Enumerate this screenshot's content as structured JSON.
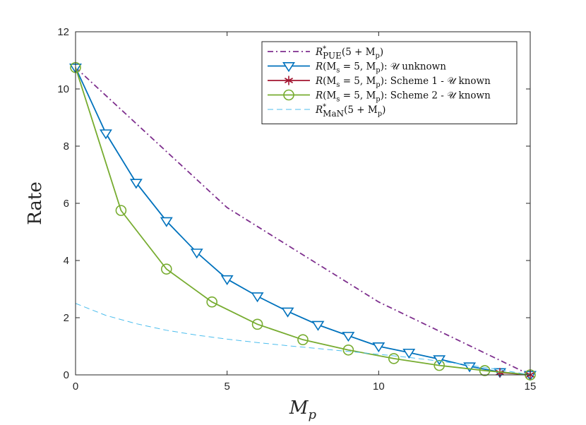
{
  "chart_data": {
    "type": "line",
    "title": "",
    "xlabel": "M_p",
    "ylabel": "Rate",
    "xlim": [
      0,
      15
    ],
    "ylim": [
      0,
      12
    ],
    "xticks": [
      "0",
      "5",
      "10",
      "15"
    ],
    "yticks": [
      "0",
      "2",
      "4",
      "6",
      "8",
      "10",
      "12"
    ],
    "grid": false,
    "legend_position": "top-right",
    "series": [
      {
        "name": "R*PUE(5 + Mp)",
        "legend_label": "R*_PUE(5 + M_p)",
        "color": "#7E2F8E",
        "style": "dashdot",
        "marker": "none",
        "x": [
          0,
          5,
          10,
          15
        ],
        "y": [
          10.75,
          5.85,
          2.55,
          0
        ]
      },
      {
        "name": "R(Ms = 5, Mp): U unknown",
        "legend_label": "R(M_s = 5, M_p): U unknown",
        "color": "#0072BD",
        "style": "solid",
        "marker": "triangle-down",
        "x": [
          0,
          1,
          2,
          3,
          4,
          5,
          6,
          7,
          8,
          9,
          10,
          11,
          12,
          13,
          14,
          15
        ],
        "y": [
          10.75,
          8.45,
          6.72,
          5.38,
          4.28,
          3.35,
          2.75,
          2.22,
          1.75,
          1.37,
          1.0,
          0.78,
          0.55,
          0.3,
          0.1,
          0
        ]
      },
      {
        "name": "R(Ms = 5, Mp): Scheme 1 - U known",
        "legend_label": "R(M_s = 5, M_p): Scheme 1 - U known",
        "color": "#A2142F",
        "style": "solid",
        "marker": "asterisk",
        "x": [
          14,
          15
        ],
        "y": [
          0.08,
          0
        ]
      },
      {
        "name": "R(Ms = 5, Mp): Scheme 2 - U known",
        "legend_label": "R(M_s = 5, M_p): Scheme 2 - U known",
        "color": "#77AC30",
        "style": "solid",
        "marker": "circle",
        "x": [
          0,
          1.5,
          3,
          4.5,
          6,
          7.5,
          9,
          10.5,
          12,
          13.5,
          15
        ],
        "y": [
          10.75,
          5.75,
          3.7,
          2.55,
          1.77,
          1.23,
          0.87,
          0.57,
          0.33,
          0.15,
          0
        ]
      },
      {
        "name": "R*MaN(5 + Mp)",
        "legend_label": "R*_MaN(5 + M_p)",
        "color": "#4DBEEE",
        "style": "dashed",
        "marker": "none",
        "x": [
          0,
          1,
          2,
          3,
          4,
          5,
          6,
          7,
          8,
          9,
          10,
          11,
          12,
          13,
          14,
          15
        ],
        "y": [
          2.5,
          2.08,
          1.79,
          1.56,
          1.39,
          1.25,
          1.13,
          1.02,
          0.92,
          0.82,
          0.72,
          0.61,
          0.48,
          0.34,
          0.18,
          0
        ]
      }
    ]
  }
}
